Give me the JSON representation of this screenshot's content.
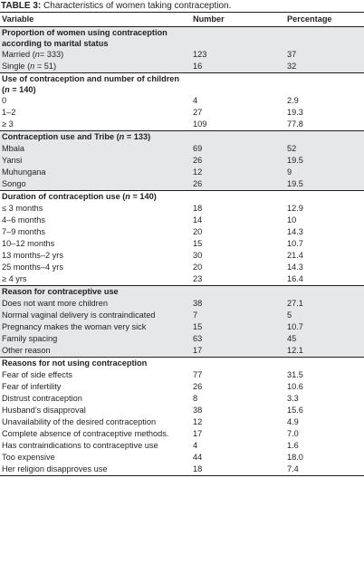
{
  "caption": {
    "label": "TABLE 3:",
    "text": " Characteristics of women taking contraception."
  },
  "headers": {
    "variable": "Variable",
    "number": "Number",
    "percentage": "Percentage"
  },
  "sections": [
    {
      "title_lines": [
        "Proportion of women using contraception",
        "according to marital status"
      ],
      "rows": [
        {
          "label": "Married (n= 333)",
          "number": "123",
          "percentage": "37"
        },
        {
          "label": "Single (n = 51)",
          "number": "16",
          "percentage": "32"
        }
      ]
    },
    {
      "title_lines": [
        "Use of contraception and number of children",
        "(n = 140)"
      ],
      "rows": [
        {
          "label": "0",
          "number": "4",
          "percentage": "2.9"
        },
        {
          "label": "1–2",
          "number": "27",
          "percentage": "19.3"
        },
        {
          "label": "≥ 3",
          "number": "109",
          "percentage": "77.8"
        }
      ]
    },
    {
      "title_lines": [
        "Contraception use and Tribe (n = 133)"
      ],
      "rows": [
        {
          "label": "Mbala",
          "number": "69",
          "percentage": "52"
        },
        {
          "label": "Yansi",
          "number": "26",
          "percentage": "19.5"
        },
        {
          "label": "Muhungana",
          "number": "12",
          "percentage": "9"
        },
        {
          "label": "Songo",
          "number": "26",
          "percentage": "19.5"
        }
      ]
    },
    {
      "title_lines": [
        "Duration of contraception use (n = 140)"
      ],
      "rows": [
        {
          "label": "≤ 3 months",
          "number": "18",
          "percentage": "12.9"
        },
        {
          "label": "4–6 months",
          "number": "14",
          "percentage": "10"
        },
        {
          "label": "7–9 months",
          "number": "20",
          "percentage": "14.3"
        },
        {
          "label": "10–12 months",
          "number": "15",
          "percentage": "10.7"
        },
        {
          "label": "13 months–2 yrs",
          "number": "30",
          "percentage": "21.4"
        },
        {
          "label": "25 months–4 yrs",
          "number": "20",
          "percentage": "14.3"
        },
        {
          "label": "≥ 4 yrs",
          "number": "23",
          "percentage": "16.4"
        }
      ]
    },
    {
      "title_lines": [
        "Reason for contraceptive use"
      ],
      "rows": [
        {
          "label": "Does not want more children",
          "number": "38",
          "percentage": "27.1"
        },
        {
          "label": "Normal vaginal delivery is contraindicated",
          "number": "7",
          "percentage": "5"
        },
        {
          "label": "Pregnancy makes the woman very sick",
          "number": "15",
          "percentage": "10.7"
        },
        {
          "label": "Family spacing",
          "number": "63",
          "percentage": "45"
        },
        {
          "label": "Other reason",
          "number": "17",
          "percentage": "12.1"
        }
      ]
    },
    {
      "title_lines": [
        "Reasons for not using contraception"
      ],
      "rows": [
        {
          "label": "Fear of side effects",
          "number": "77",
          "percentage": "31.5"
        },
        {
          "label": "Fear of infertility",
          "number": "26",
          "percentage": "10.6"
        },
        {
          "label": "Distrust contraception",
          "number": "8",
          "percentage": "3.3"
        },
        {
          "label": "Husband’s disapproval",
          "number": "38",
          "percentage": "15.6"
        },
        {
          "label": "Unavailability of the desired contraception",
          "number": "12",
          "percentage": "4.9"
        },
        {
          "label": "Complete absence of contraceptive methods.",
          "number": "17",
          "percentage": "7.0"
        },
        {
          "label": "Has contraindications to contraceptive use",
          "number": "4",
          "percentage": "1.6"
        },
        {
          "label": "Too expensive",
          "number": "44",
          "percentage": "18.0"
        },
        {
          "label": "Her religion disapproves use",
          "number": "18",
          "percentage": "7.4"
        }
      ]
    }
  ]
}
